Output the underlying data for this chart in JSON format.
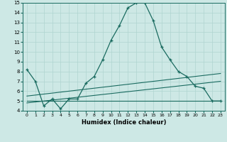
{
  "xlabel": "Humidex (Indice chaleur)",
  "xlim": [
    -0.5,
    23.5
  ],
  "ylim": [
    4,
    15
  ],
  "xticks": [
    0,
    1,
    2,
    3,
    4,
    5,
    6,
    7,
    8,
    9,
    10,
    11,
    12,
    13,
    14,
    15,
    16,
    17,
    18,
    19,
    20,
    21,
    22,
    23
  ],
  "yticks": [
    4,
    5,
    6,
    7,
    8,
    9,
    10,
    11,
    12,
    13,
    14,
    15
  ],
  "bg_color": "#cde8e5",
  "line_color": "#1a6b60",
  "grid_color": "#afd4d0",
  "line1_x": [
    0,
    1,
    2,
    3,
    4,
    5,
    6,
    7,
    8,
    9,
    10,
    11,
    12,
    13,
    14,
    15,
    16,
    17,
    18,
    19,
    20,
    21,
    22,
    23
  ],
  "line1_y": [
    8.2,
    7.0,
    4.5,
    5.2,
    4.2,
    5.2,
    5.2,
    6.8,
    7.5,
    9.2,
    11.2,
    12.7,
    14.5,
    15.0,
    15.0,
    13.2,
    10.5,
    9.2,
    8.0,
    7.5,
    6.5,
    6.3,
    5.0,
    5.0
  ],
  "line2_x": [
    0,
    23
  ],
  "line2_y": [
    5.0,
    5.0
  ],
  "line3_x": [
    0,
    23
  ],
  "line3_y": [
    4.8,
    7.0
  ],
  "line4_x": [
    0,
    23
  ],
  "line4_y": [
    5.5,
    7.8
  ]
}
